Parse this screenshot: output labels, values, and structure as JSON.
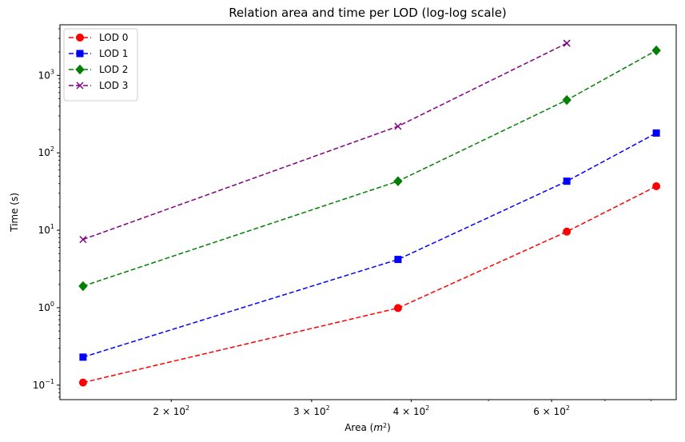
{
  "chart_data": {
    "type": "line",
    "title": "Relation area and time per LOD (log-log scale)",
    "xlabel": {
      "main": "Area (",
      "var": "m",
      "sup": "2",
      "end": ")"
    },
    "ylabel": "Time (s)",
    "xscale": "log",
    "yscale": "log",
    "xlim": [
      145,
      860
    ],
    "ylim": [
      0.065,
      4500
    ],
    "grid": false,
    "legend_position": "top-left",
    "x_ticks": [
      {
        "value": 200,
        "label": {
          "base": "2 × 10",
          "exp": "2"
        }
      },
      {
        "value": 300,
        "label": {
          "base": "3 × 10",
          "exp": "2"
        }
      },
      {
        "value": 400,
        "label": {
          "base": "4 × 10",
          "exp": "2"
        }
      },
      {
        "value": 600,
        "label": {
          "base": "6 × 10",
          "exp": "2"
        }
      }
    ],
    "x_minor_ticks": [
      500,
      700,
      800
    ],
    "y_ticks": [
      {
        "value": 0.1,
        "label": {
          "base": "10",
          "exp": "−1"
        }
      },
      {
        "value": 1,
        "label": {
          "base": "10",
          "exp": "0"
        }
      },
      {
        "value": 10,
        "label": {
          "base": "10",
          "exp": "1"
        }
      },
      {
        "value": 100,
        "label": {
          "base": "10",
          "exp": "2"
        }
      },
      {
        "value": 1000,
        "label": {
          "base": "10",
          "exp": "3"
        }
      }
    ],
    "series": [
      {
        "name": "LOD 0",
        "color": "#ff0000",
        "marker": "circle",
        "line_style": "dashed",
        "x": [
          155,
          385,
          627,
          812
        ],
        "y": [
          0.108,
          0.99,
          9.6,
          37
        ]
      },
      {
        "name": "LOD 1",
        "color": "#0000ff",
        "marker": "square",
        "line_style": "dashed",
        "x": [
          155,
          385,
          627,
          812
        ],
        "y": [
          0.23,
          4.2,
          43,
          180
        ]
      },
      {
        "name": "LOD 2",
        "color": "#008000",
        "marker": "diamond",
        "line_style": "dashed",
        "x": [
          155,
          385,
          627,
          812
        ],
        "y": [
          1.9,
          43,
          480,
          2100
        ]
      },
      {
        "name": "LOD 3",
        "color": "#800080",
        "marker": "x",
        "line_style": "dashed",
        "x": [
          155,
          385,
          627
        ],
        "y": [
          7.6,
          220,
          2600
        ]
      }
    ]
  }
}
